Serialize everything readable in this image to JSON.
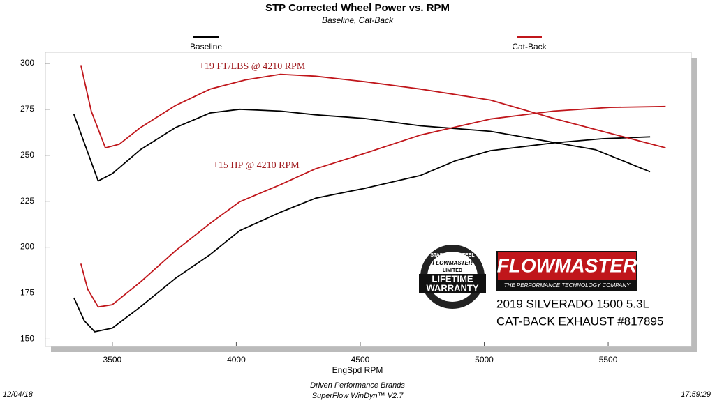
{
  "chart_data": {
    "type": "line",
    "title": "STP Corrected Wheel Power vs. RPM",
    "subtitle": "Baseline, Cat-Back",
    "x_label": "EngSpd  RPM",
    "xlim": [
      3230,
      5835
    ],
    "ylim": [
      146,
      306
    ],
    "xticks": [
      3500,
      4000,
      4500,
      5000,
      5500
    ],
    "yticks": [
      150,
      175,
      200,
      225,
      250,
      275,
      300
    ],
    "grid": false,
    "legend": "top",
    "annotations": [
      "+19 FT/LBS @ 4210 RPM",
      "+15 HP @ 4210 RPM"
    ],
    "series": [
      {
        "name": "Baseline",
        "color": "#000000",
        "curves": [
          {
            "x": [
              3345,
              3443,
              3500,
              3613,
              3754,
              3895,
              4014,
              4178,
              4319,
              4517,
              4743,
              5025,
              5280,
              5449,
              5669
            ],
            "values": [
              272.3,
              236,
              240,
              253,
              265,
              273,
              275,
              274,
              272,
              270,
              266,
              263,
              257,
              253,
              241
            ]
          },
          {
            "x": [
              3345,
              3387,
              3429,
              3500,
              3613,
              3754,
              3895,
              4014,
              4178,
              4319,
              4517,
              4743,
              4884,
              5025,
              5280,
              5477,
              5669
            ],
            "values": [
              172.5,
              160,
              154,
              156,
              167.5,
              183,
              196,
              209,
              219,
              226.6,
              232,
              239,
              247,
              252.5,
              256.7,
              259,
              260
            ]
          }
        ]
      },
      {
        "name": "Cat-Back",
        "color": "#c0161b",
        "curves": [
          {
            "x": [
              3373,
              3415,
              3472,
              3528,
              3613,
              3754,
              3895,
              4037,
              4178,
              4319,
              4517,
              4743,
              5025,
              5280,
              5506,
              5732
            ],
            "values": [
              299,
              274,
              254,
              256,
              265,
              277,
              286,
              291,
              294,
              293,
              290,
              286,
              280,
              270,
              262,
              254
            ]
          },
          {
            "x": [
              3373,
              3401,
              3443,
              3500,
              3613,
              3754,
              3895,
              4014,
              4178,
              4319,
              4517,
              4743,
              5025,
              5280,
              5506,
              5732
            ],
            "values": [
              191,
              177,
              167.5,
              168.7,
              181,
              198,
              213,
              224.7,
              234,
              242.6,
              251,
              261,
              269.7,
              274,
              276,
              276.5
            ]
          }
        ]
      }
    ]
  },
  "logo": {
    "brand": "FLOWMASTER",
    "tagline": "THE PERFORMANCE TECHNOLOGY COMPANY"
  },
  "badge": {
    "ring": "STAINLESS STEEL",
    "brand": "FLOWMASTER",
    "limited": "LIMITED",
    "line1": "LIFETIME",
    "line2": "WARRANTY"
  },
  "vehicle": [
    "2019 SILVERADO 1500 5.3L",
    "CAT-BACK EXHAUST #817895"
  ],
  "footer": {
    "date": "12/04/18",
    "company": "Driven Performance Brands",
    "software": "SuperFlow WinDyn™  V2.7",
    "time": "17:59:29"
  }
}
